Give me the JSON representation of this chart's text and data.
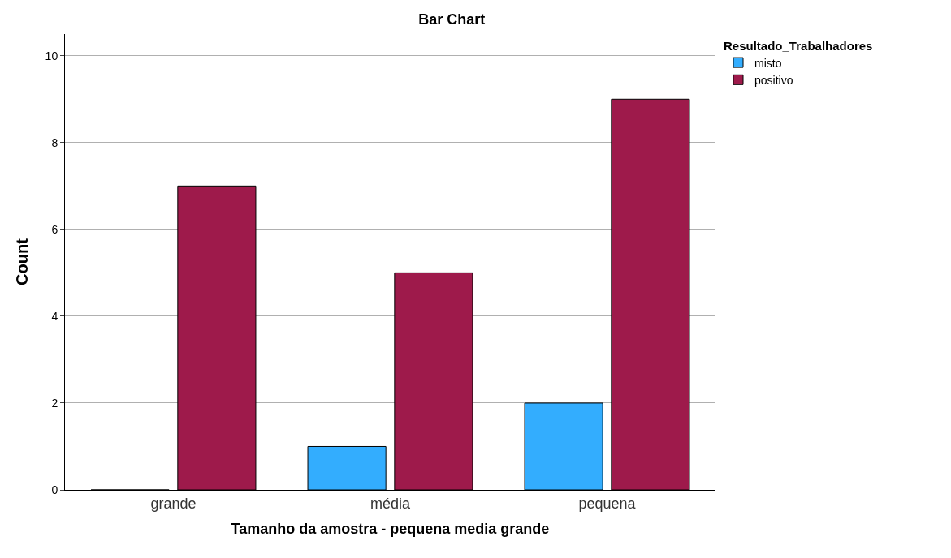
{
  "chart_data": {
    "type": "bar",
    "title": "Bar Chart",
    "xlabel": "Tamanho da amostra - pequena media grande",
    "ylabel": "Count",
    "legend_title": "Resultado_Trabalhadores",
    "categories": [
      "grande",
      "média",
      "pequena"
    ],
    "series": [
      {
        "name": "misto",
        "color": "#33adfe",
        "values": [
          0,
          1,
          2
        ]
      },
      {
        "name": "positivo",
        "color": "#9e1a4b",
        "values": [
          7,
          5,
          9
        ]
      }
    ],
    "ylim": [
      0,
      10.5
    ],
    "yticks": [
      0,
      2,
      4,
      6,
      8,
      10
    ],
    "grid": "y",
    "legend": "top right"
  }
}
